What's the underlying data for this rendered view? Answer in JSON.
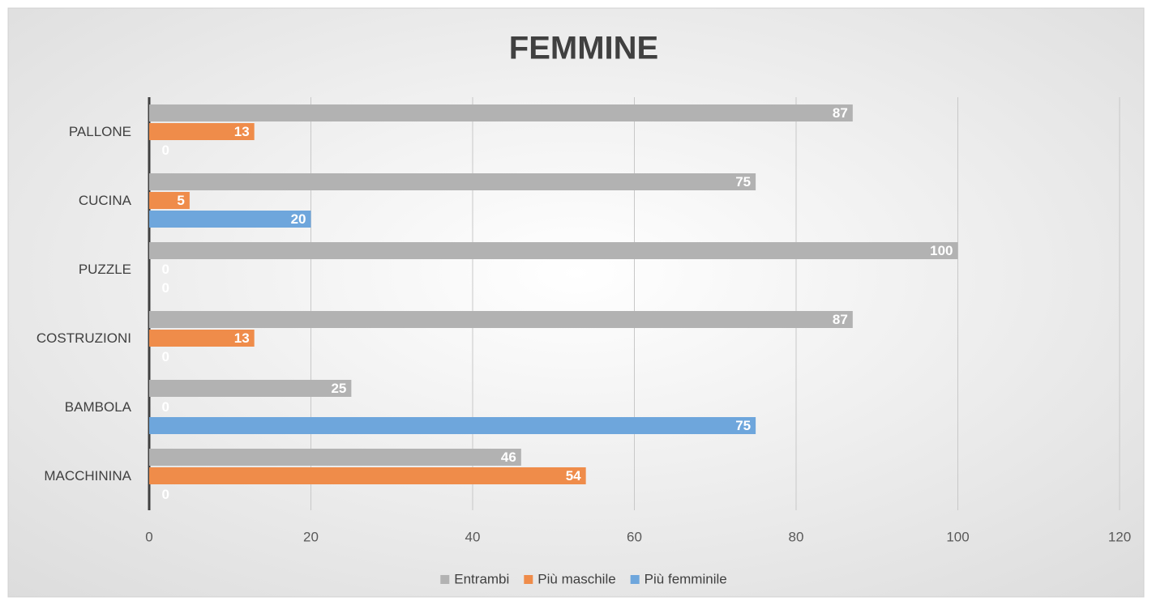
{
  "chart_data": {
    "type": "hbar",
    "title": "FEMMINE",
    "categories": [
      "PALLONE",
      "CUCINA",
      "PUZZLE",
      "COSTRUZIONI",
      "BAMBOLA",
      "MACCHININA"
    ],
    "series": [
      {
        "name": "Entrambi",
        "color": "#b2b2b2",
        "values": [
          87,
          75,
          100,
          87,
          25,
          46
        ]
      },
      {
        "name": "Più maschile",
        "color": "#ef8c4a",
        "values": [
          13,
          5,
          0,
          13,
          0,
          54
        ]
      },
      {
        "name": "Più femminile",
        "color": "#6ea6dc",
        "values": [
          0,
          20,
          0,
          0,
          75,
          0
        ]
      }
    ],
    "xlim": [
      0,
      120
    ],
    "xticks": [
      0,
      20,
      40,
      60,
      80,
      100,
      120
    ],
    "grid": true,
    "legend": "bottom"
  }
}
